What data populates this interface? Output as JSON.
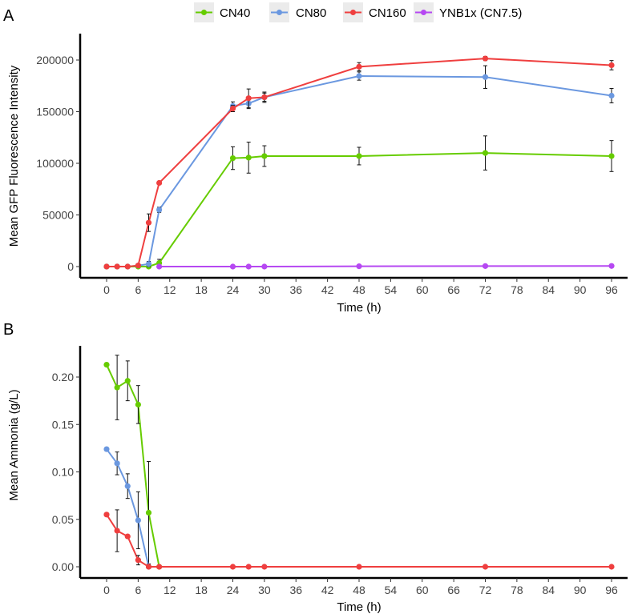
{
  "legend": {
    "items": [
      {
        "name": "CN40",
        "color": "#66cc00"
      },
      {
        "name": "CN80",
        "color": "#6b98e0"
      },
      {
        "name": "CN160",
        "color": "#ef3f3f"
      },
      {
        "name": "YNB1x (CN7.5)",
        "color": "#b648f2"
      }
    ]
  },
  "chart_data": [
    {
      "panel_label": "A",
      "type": "line",
      "xlabel": "Time (h)",
      "ylabel": "Mean GFP Fluorescence Intensity",
      "xlim": [
        0,
        96
      ],
      "ylim": [
        0,
        200000
      ],
      "xticks": [
        0,
        6,
        12,
        18,
        24,
        30,
        36,
        42,
        48,
        54,
        60,
        66,
        72,
        78,
        84,
        90,
        96
      ],
      "yticks": [
        0,
        50000,
        100000,
        150000,
        200000
      ],
      "ytick_labels": [
        "0",
        "50000",
        "100000",
        "150000",
        "200000"
      ],
      "series": [
        {
          "name": "CN40",
          "color": "#66cc00",
          "x": [
            0,
            2,
            4,
            6,
            8,
            10,
            24,
            27,
            30,
            48,
            72,
            96
          ],
          "y": [
            0,
            0,
            0,
            0,
            0,
            3500,
            105000,
            105500,
            107000,
            107000,
            110000,
            107000
          ],
          "err": [
            0,
            0,
            0,
            0,
            0,
            3500,
            11000,
            15000,
            10000,
            8500,
            16500,
            15000
          ]
        },
        {
          "name": "CN80",
          "color": "#6b98e0",
          "x": [
            0,
            2,
            4,
            6,
            8,
            10,
            24,
            27,
            30,
            48,
            72,
            96
          ],
          "y": [
            0,
            0,
            0,
            1000,
            2500,
            55000,
            155500,
            158000,
            164000,
            184500,
            183500,
            165500
          ],
          "err": [
            0,
            0,
            0,
            1000,
            2500,
            2500,
            4000,
            5000,
            4000,
            4000,
            11000,
            7000
          ]
        },
        {
          "name": "CN160",
          "color": "#ef3f3f",
          "x": [
            0,
            2,
            4,
            6,
            8,
            10,
            24,
            27,
            30,
            48,
            72,
            96
          ],
          "y": [
            0,
            0,
            0,
            1000,
            42500,
            81000,
            153000,
            163000,
            164000,
            193500,
            201500,
            195000
          ],
          "err": [
            0,
            0,
            0,
            1000,
            8500,
            1500,
            3000,
            9000,
            5000,
            4000,
            2000,
            4500
          ]
        },
        {
          "name": "YNB1x (CN7.5)",
          "color": "#b648f2",
          "x": [
            10,
            24,
            27,
            30,
            48,
            72,
            96
          ],
          "y": [
            0,
            0,
            0,
            0,
            300,
            500,
            600
          ],
          "err": [
            0,
            0,
            0,
            0,
            0,
            0,
            0
          ]
        }
      ]
    },
    {
      "panel_label": "B",
      "type": "line",
      "xlabel": "Time (h)",
      "ylabel": "Mean Ammonia (g/L)",
      "xlim": [
        0,
        96
      ],
      "ylim": [
        0,
        0.22
      ],
      "xticks": [
        0,
        6,
        12,
        18,
        24,
        30,
        36,
        42,
        48,
        54,
        60,
        66,
        72,
        78,
        84,
        90,
        96
      ],
      "yticks": [
        0,
        0.05,
        0.1,
        0.15,
        0.2
      ],
      "ytick_labels": [
        "0.00",
        "0.05",
        "0.10",
        "0.15",
        "0.20"
      ],
      "series": [
        {
          "name": "CN40",
          "color": "#66cc00",
          "x": [
            0,
            2,
            4,
            6,
            8,
            10
          ],
          "y": [
            0.213,
            0.189,
            0.196,
            0.171,
            0.057,
            0
          ],
          "err": [
            0,
            0.034,
            0.021,
            0.02,
            0.054,
            0
          ]
        },
        {
          "name": "CN80",
          "color": "#6b98e0",
          "x": [
            0,
            2,
            4,
            6,
            8
          ],
          "y": [
            0.124,
            0.109,
            0.085,
            0.049,
            0
          ],
          "err": [
            0,
            0.012,
            0.013,
            0.03,
            0
          ]
        },
        {
          "name": "CN160",
          "color": "#ef3f3f",
          "x": [
            0,
            2,
            4,
            6,
            8,
            10,
            24,
            27,
            30,
            48,
            72,
            96
          ],
          "y": [
            0.055,
            0.038,
            0.032,
            0.007,
            0,
            0,
            0,
            0,
            0,
            0,
            0,
            0
          ],
          "err": [
            0,
            0.022,
            0,
            0.005,
            0,
            0,
            0,
            0,
            0,
            0,
            0,
            0
          ]
        }
      ]
    }
  ]
}
